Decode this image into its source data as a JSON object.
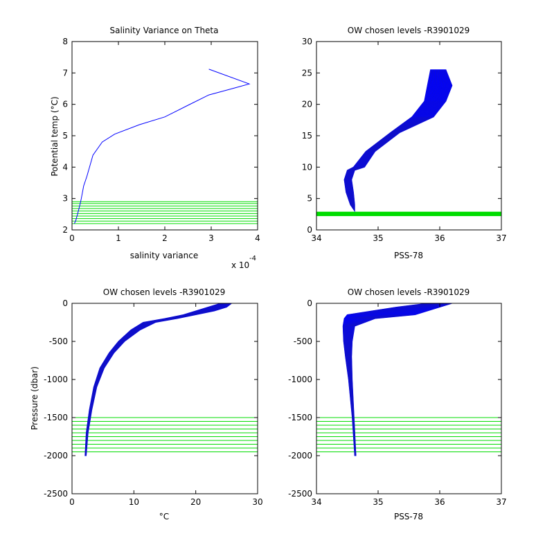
{
  "colors": {
    "profile": "#0000ff",
    "levels": "#00dd00",
    "axis": "#000000"
  },
  "chart_data": [
    {
      "id": "tl",
      "type": "line",
      "title": "Salinity Variance on Theta",
      "xlabel": "salinity variance",
      "ylabel": "Potential temp (°C)",
      "x_exponent_label": "x 10",
      "x_exponent_power": "-4",
      "xlim": [
        0,
        4
      ],
      "ylim": [
        2,
        8
      ],
      "xticks": [
        0,
        1,
        2,
        3,
        4
      ],
      "yticks": [
        2,
        3,
        4,
        5,
        6,
        7,
        8
      ],
      "series": [
        {
          "x": [
            2.95,
            3.82,
            3.5,
            2.95,
            2.5,
            2.0,
            1.45,
            0.92,
            0.65,
            0.45,
            0.32,
            0.25,
            0.2,
            0.17,
            0.12,
            0.08,
            0.05
          ],
          "y": [
            7.12,
            6.65,
            6.52,
            6.3,
            5.97,
            5.6,
            5.35,
            5.05,
            4.8,
            4.38,
            3.7,
            3.4,
            3.0,
            2.8,
            2.5,
            2.3,
            2.2
          ]
        }
      ],
      "level_lines_y": [
        2.2,
        2.28,
        2.36,
        2.44,
        2.52,
        2.6,
        2.68,
        2.76,
        2.84,
        2.9
      ]
    },
    {
      "id": "tr",
      "type": "line",
      "title": "OW chosen levels -R3901029",
      "xlabel": "PSS-78",
      "ylabel": "",
      "xlim": [
        34,
        37
      ],
      "ylim": [
        0,
        30
      ],
      "xticks": [
        34,
        35,
        36,
        37
      ],
      "yticks": [
        0,
        5,
        10,
        15,
        20,
        25,
        30
      ],
      "envelope": [
        {
          "x": [
            34.62,
            34.55,
            34.48,
            34.45,
            34.5,
            34.6,
            34.8,
            35.2,
            35.55,
            35.75,
            35.8,
            35.85
          ],
          "y": [
            3.0,
            4.0,
            6.0,
            8.0,
            9.5,
            10.0,
            12.5,
            15.5,
            18.0,
            20.5,
            23.0,
            25.5
          ]
        },
        {
          "x": [
            34.62,
            34.62,
            34.6,
            34.57,
            34.62,
            34.78,
            34.95,
            35.35,
            35.9,
            36.1,
            36.2,
            36.1
          ],
          "y": [
            3.0,
            4.0,
            6.0,
            8.0,
            9.5,
            10.0,
            12.5,
            15.5,
            18.0,
            20.5,
            23.0,
            25.5
          ]
        }
      ],
      "level_band_y": [
        2.2,
        2.9
      ]
    },
    {
      "id": "bl",
      "type": "line",
      "title": "OW chosen levels -R3901029",
      "xlabel": "°C",
      "ylabel": "Pressure (dbar)",
      "xlim": [
        0,
        30
      ],
      "ylim": [
        -2500,
        0
      ],
      "xticks": [
        0,
        10,
        20,
        30
      ],
      "yticks": [
        -2500,
        -2000,
        -1500,
        -1000,
        -500,
        0
      ],
      "envelope": [
        {
          "x": [
            2.1,
            2.3,
            2.8,
            3.5,
            4.5,
            6.0,
            7.5,
            9.5,
            11.5,
            15.0,
            18.0,
            20.0,
            22.0,
            24.0
          ],
          "y": [
            -2000,
            -1700,
            -1400,
            -1100,
            -850,
            -650,
            -500,
            -350,
            -250,
            -200,
            -150,
            -100,
            -50,
            0
          ]
        },
        {
          "x": [
            2.3,
            2.6,
            3.2,
            4.0,
            5.2,
            6.8,
            8.5,
            11.0,
            13.5,
            17.0,
            20.0,
            23.0,
            25.0,
            25.8
          ],
          "y": [
            -2000,
            -1700,
            -1400,
            -1100,
            -850,
            -650,
            -500,
            -350,
            -250,
            -200,
            -150,
            -100,
            -50,
            0
          ]
        }
      ],
      "level_lines_y": [
        -1500,
        -1550,
        -1600,
        -1650,
        -1700,
        -1750,
        -1800,
        -1850,
        -1900,
        -1950
      ]
    },
    {
      "id": "br",
      "type": "line",
      "title": "OW chosen levels -R3901029",
      "xlabel": "PSS-78",
      "ylabel": "",
      "xlim": [
        34,
        37
      ],
      "ylim": [
        -2500,
        0
      ],
      "xticks": [
        34,
        35,
        36,
        37
      ],
      "yticks": [
        -2500,
        -2000,
        -1500,
        -1000,
        -500,
        0
      ],
      "envelope": [
        {
          "x": [
            34.62,
            34.58,
            34.52,
            34.47,
            34.44,
            34.43,
            34.45,
            34.5,
            35.3,
            35.8
          ],
          "y": [
            -2000,
            -1500,
            -1000,
            -700,
            -500,
            -300,
            -200,
            -150,
            -50,
            0
          ]
        },
        {
          "x": [
            34.64,
            34.61,
            34.58,
            34.57,
            34.58,
            34.62,
            34.95,
            35.6,
            36.0,
            36.2
          ],
          "y": [
            -2000,
            -1500,
            -1000,
            -700,
            -500,
            -300,
            -200,
            -150,
            -50,
            0
          ]
        }
      ],
      "level_lines_y": [
        -1500,
        -1550,
        -1600,
        -1650,
        -1700,
        -1750,
        -1800,
        -1850,
        -1900,
        -1950
      ]
    }
  ]
}
